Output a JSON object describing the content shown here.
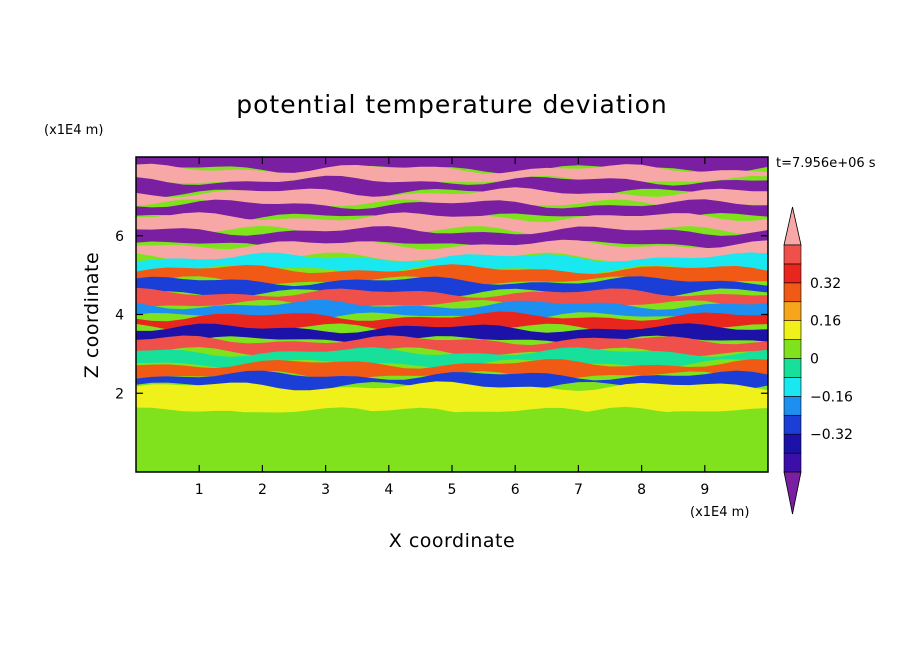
{
  "chart_data": {
    "type": "heatmap",
    "title": "potential temperature deviation",
    "xlabel": "X coordinate",
    "ylabel": "Z coordinate",
    "x_unit": "(x1E4 m)",
    "z_unit": "(x1E4 m)",
    "time_label": "t=7.956e+06 s",
    "xlim": [
      0,
      10
    ],
    "ylim": [
      0,
      8
    ],
    "x_ticks": [
      1,
      2,
      3,
      4,
      5,
      6,
      7,
      8,
      9
    ],
    "y_ticks": [
      2,
      4,
      6
    ],
    "colorbar": {
      "levels": [
        -0.48,
        -0.4,
        -0.32,
        -0.24,
        -0.16,
        -0.08,
        0,
        0.08,
        0.16,
        0.24,
        0.32,
        0.4,
        0.48
      ],
      "colors": [
        "#7b1fa2",
        "#3b0fa8",
        "#1c12a8",
        "#1b3fd6",
        "#1d8ff0",
        "#19e8f0",
        "#16e09a",
        "#7fe21c",
        "#f0f01a",
        "#f7a51a",
        "#f05a14",
        "#e8261e",
        "#f0504a",
        "#f7a8a6"
      ],
      "tick_labels": [
        "0.32",
        "0.16",
        "0",
        "−0.16",
        "−0.32"
      ],
      "tick_values": [
        0.32,
        0.16,
        0,
        -0.16,
        -0.32
      ]
    },
    "layers": [
      {
        "z": 7.85,
        "value": -0.5
      },
      {
        "z": 7.55,
        "value": 0.5
      },
      {
        "z": 7.25,
        "value": -0.5
      },
      {
        "z": 6.95,
        "value": 0.5
      },
      {
        "z": 6.65,
        "value": -0.5
      },
      {
        "z": 6.3,
        "value": 0.5
      },
      {
        "z": 5.95,
        "value": -0.5
      },
      {
        "z": 5.6,
        "value": 0.5
      },
      {
        "z": 5.3,
        "value": -0.1
      },
      {
        "z": 5.0,
        "value": 0.3
      },
      {
        "z": 4.7,
        "value": -0.3
      },
      {
        "z": 4.4,
        "value": 0.4
      },
      {
        "z": 4.1,
        "value": -0.2
      },
      {
        "z": 3.8,
        "value": 0.35
      },
      {
        "z": 3.5,
        "value": -0.4
      },
      {
        "z": 3.2,
        "value": 0.45
      },
      {
        "z": 2.9,
        "value": -0.05
      },
      {
        "z": 2.6,
        "value": 0.25
      },
      {
        "z": 2.3,
        "value": -0.3
      },
      {
        "z": 2.05,
        "value": 0.1
      },
      {
        "z": 1.0,
        "value": 0.03
      }
    ]
  }
}
